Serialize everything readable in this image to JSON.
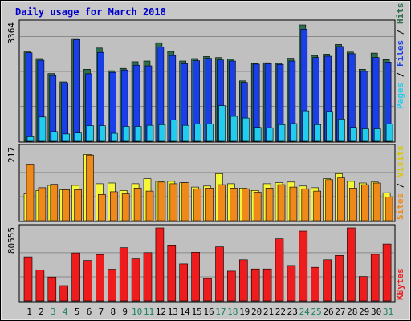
{
  "chart_data": {
    "type": "bar",
    "title": "Daily usage for March 2018",
    "categories": [
      "1",
      "2",
      "3",
      "4",
      "5",
      "6",
      "7",
      "8",
      "9",
      "10",
      "11",
      "12",
      "13",
      "14",
      "15",
      "16",
      "17",
      "18",
      "19",
      "20",
      "21",
      "22",
      "23",
      "24",
      "25",
      "26",
      "27",
      "28",
      "29",
      "30",
      "31"
    ],
    "weekend_days": [
      "3",
      "4",
      "10",
      "11",
      "17",
      "18",
      "24",
      "25",
      "31"
    ],
    "panels": [
      {
        "label": [
          "Pages",
          "Files",
          "Hits"
        ],
        "ymax_label": "3364",
        "ylim": [
          0,
          3364
        ],
        "series": [
          {
            "name": "Hits",
            "color": "#2e6e4e",
            "values": [
              2585,
              2390,
              1958,
              1717,
              2967,
              2080,
              2696,
              2040,
              2106,
              2300,
              2319,
              2849,
              2598,
              2319,
              2390,
              2450,
              2420,
              2370,
              1744,
              2250,
              2270,
              2250,
              2400,
              3364,
              2480,
              2520,
              2800,
              2580,
              2080,
              2550,
              2360
            ]
          },
          {
            "name": "Files",
            "color": "#1a3ee8",
            "values": [
              2560,
              2340,
              1900,
              1690,
              2940,
              1950,
              2570,
              1990,
              2060,
              2200,
              2180,
              2730,
              2480,
              2240,
              2330,
              2400,
              2350,
              2320,
              1700,
              2230,
              2240,
              2220,
              2320,
              3240,
              2420,
              2460,
              2740,
              2530,
              2020,
              2420,
              2290
            ]
          },
          {
            "name": "Pages",
            "color": "#22ccee",
            "values": [
              130,
              700,
              280,
              210,
              240,
              450,
              450,
              230,
              430,
              430,
              460,
              480,
              620,
              460,
              500,
              500,
              1030,
              720,
              670,
              400,
              390,
              480,
              510,
              880,
              480,
              860,
              640,
              400,
              360,
              360,
              500
            ]
          }
        ]
      },
      {
        "label": [
          "Sites",
          "Visits"
        ],
        "ymax_label": "217",
        "ylim": [
          0,
          217
        ],
        "series": [
          {
            "name": "Visits",
            "color": "#f5f53a",
            "values": [
              80,
              90,
              105,
              92,
              105,
              197,
              110,
              112,
              90,
              110,
              125,
              117,
              117,
              113,
              100,
              103,
              140,
              110,
              97,
              90,
              110,
              113,
              115,
              103,
              98,
              125,
              140,
              117,
              112,
              115,
              83
            ]
          },
          {
            "name": "Sites",
            "color": "#ef8a1a",
            "values": [
              168,
              98,
              108,
              92,
              92,
              195,
              78,
              86,
              80,
              97,
              88,
              115,
              110,
              113,
              95,
              97,
              107,
              97,
              95,
              85,
              97,
              107,
              100,
              95,
              88,
              122,
              127,
              97,
              107,
              112,
              70
            ]
          }
        ]
      },
      {
        "label": [
          "KBytes"
        ],
        "ymax_label": "80555",
        "ylim": [
          0,
          80555
        ],
        "series": [
          {
            "name": "KBytes",
            "color": "#ee1c1c",
            "values": [
              48600,
              34000,
              26400,
              16800,
              53000,
              44600,
              51200,
              35000,
              58700,
              46400,
              53300,
              80555,
              61700,
              40800,
              53700,
              24700,
              59700,
              32800,
              45300,
              35200,
              35200,
              68400,
              39000,
              77000,
              37000,
              45300,
              50200,
              80555,
              26900,
              51400,
              62800
            ]
          }
        ]
      }
    ]
  }
}
